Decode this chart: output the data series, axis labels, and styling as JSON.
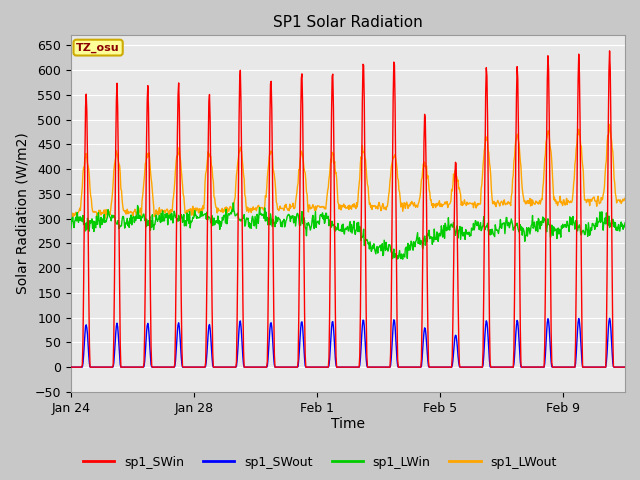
{
  "title": "SP1 Solar Radiation",
  "xlabel": "Time",
  "ylabel": "Solar Radiation (W/m2)",
  "ylim": [
    -50,
    670
  ],
  "yticks": [
    -50,
    0,
    50,
    100,
    150,
    200,
    250,
    300,
    350,
    400,
    450,
    500,
    550,
    600,
    650
  ],
  "fig_bg_color": "#c8c8c8",
  "plot_bg_color": "#e8e8e8",
  "grid_color": "white",
  "tz_label": "TZ_osu",
  "tz_bg": "#ffff99",
  "tz_border": "#ccaa00",
  "tz_text_color": "#8B0000",
  "legend_entries": [
    "sp1_SWin",
    "sp1_SWout",
    "sp1_LWin",
    "sp1_LWout"
  ],
  "legend_colors": [
    "red",
    "blue",
    "#00cc00",
    "orange"
  ],
  "line_width": 1.0,
  "x_tick_positions": [
    0,
    4,
    8,
    12,
    16
  ],
  "x_tick_labels": [
    "Jan 24",
    "Jan 28",
    "Feb 1",
    "Feb 5",
    "Feb 9"
  ],
  "xlim": [
    0,
    18
  ],
  "figsize": [
    6.4,
    4.8
  ],
  "dpi": 100
}
